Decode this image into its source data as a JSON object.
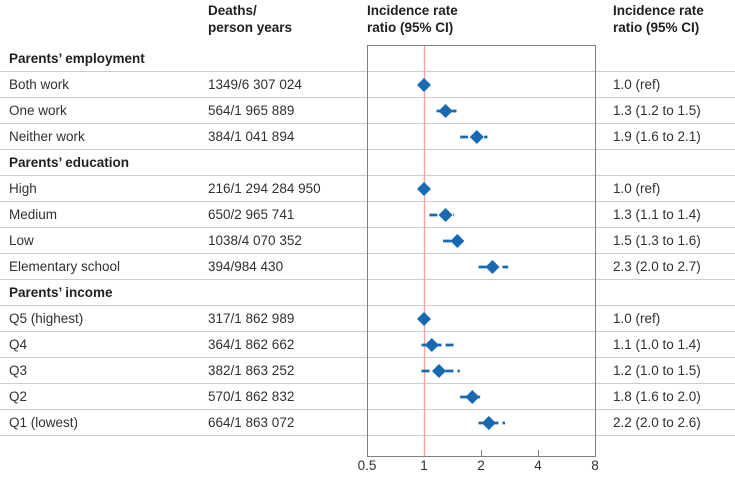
{
  "headers": {
    "deaths": "Deaths/\nperson years",
    "plot": "Incidence rate\nratio (95% CI)",
    "irr": "Incidence rate\nratio (95% CI)"
  },
  "chart_data": {
    "type": "forest",
    "x_scale": "log2",
    "x_range": [
      0.5,
      8
    ],
    "x_ticks": [
      "0.5",
      "1",
      "2",
      "4",
      "8"
    ],
    "reference_value": 1,
    "rows": [
      {
        "kind": "section",
        "label": "Parents’ employment"
      },
      {
        "kind": "item",
        "label": "Both work",
        "deaths": "1349/6 307 024",
        "irr": 1.0,
        "lo": null,
        "hi": null,
        "irr_text": "1.0 (ref)"
      },
      {
        "kind": "item",
        "label": "One work",
        "deaths": "564/1 965 889",
        "irr": 1.3,
        "lo": 1.2,
        "hi": 1.5,
        "irr_text": "1.3 (1.2 to 1.5)"
      },
      {
        "kind": "item",
        "label": "Neither work",
        "deaths": "384/1 041 894",
        "irr": 1.9,
        "lo": 1.6,
        "hi": 2.1,
        "irr_text": "1.9 (1.6 to 2.1)"
      },
      {
        "kind": "section",
        "label": "Parents’ education"
      },
      {
        "kind": "item",
        "label": "High",
        "deaths": "216/1 294 284 950",
        "irr": 1.0,
        "lo": null,
        "hi": null,
        "irr_text": "1.0 (ref)"
      },
      {
        "kind": "item",
        "label": "Medium",
        "deaths": "650/2 965 741",
        "irr": 1.3,
        "lo": 1.1,
        "hi": 1.4,
        "irr_text": "1.3 (1.1 to 1.4)"
      },
      {
        "kind": "item",
        "label": "Low",
        "deaths": "1038/4 070 352",
        "irr": 1.5,
        "lo": 1.3,
        "hi": 1.6,
        "irr_text": "1.5 (1.3 to 1.6)"
      },
      {
        "kind": "item",
        "label": "Elementary school",
        "deaths": "394/984 430",
        "irr": 2.3,
        "lo": 2.0,
        "hi": 2.7,
        "irr_text": "2.3 (2.0 to 2.7)"
      },
      {
        "kind": "section",
        "label": "Parents’ income"
      },
      {
        "kind": "item",
        "label": "Q5 (highest)",
        "deaths": "317/1 862 989",
        "irr": 1.0,
        "lo": null,
        "hi": null,
        "irr_text": "1.0 (ref)"
      },
      {
        "kind": "item",
        "label": "Q4",
        "deaths": "364/1 862 662",
        "irr": 1.1,
        "lo": 1.0,
        "hi": 1.4,
        "irr_text": "1.1 (1.0 to 1.4)"
      },
      {
        "kind": "item",
        "label": "Q3",
        "deaths": "382/1 863 252",
        "irr": 1.2,
        "lo": 1.0,
        "hi": 1.5,
        "irr_text": "1.2 (1.0 to 1.5)"
      },
      {
        "kind": "item",
        "label": "Q2",
        "deaths": "570/1 862 832",
        "irr": 1.8,
        "lo": 1.6,
        "hi": 2.0,
        "irr_text": "1.8 (1.6 to 2.0)"
      },
      {
        "kind": "item",
        "label": "Q1 (lowest)",
        "deaths": "664/1 863 072",
        "irr": 2.2,
        "lo": 2.0,
        "hi": 2.6,
        "irr_text": "2.2 (2.0 to 2.6)"
      }
    ]
  },
  "colors": {
    "marker_blue": "#1769b3",
    "reference_pink": "#f2a3a1",
    "separator_gray": "#cccccc",
    "box_border_gray": "#7f7f7f",
    "text": "#303030",
    "text_strong": "#1f1f1f"
  }
}
